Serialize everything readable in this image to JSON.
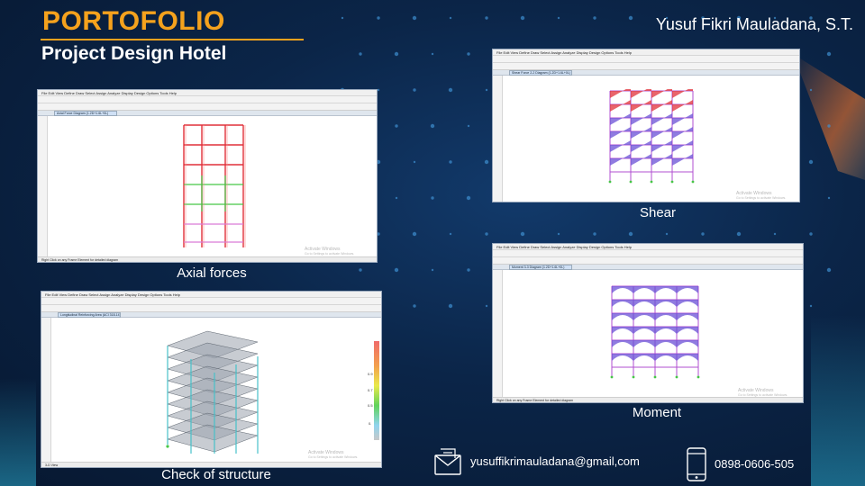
{
  "header": {
    "title": "PORTOFOLIO",
    "subtitle": "Project Design Hotel",
    "author": "Yusuf Fikri Mauladana, S.T."
  },
  "colors": {
    "accent": "#f5a21d",
    "background": "#0b2548"
  },
  "panels": {
    "axial": {
      "caption": "Axial forces",
      "tab": "Axial Force Diagram (1.2D+1.6L+0L)",
      "status": "Right Click on any Frame Element for detailed diagram"
    },
    "shear": {
      "caption": "Shear",
      "tab": "Shear Force 2-2 Diagram (1.2D+1.6L+0L)"
    },
    "moment": {
      "caption": "Moment",
      "tab": "Moment 3-3 Diagram (1.2D+1.6L+0L)",
      "status": "Right Click on any Frame Element for detailed diagram"
    },
    "check": {
      "caption": "Check of structure",
      "tab": "Longitudinal Reinforcing Area (ACI 318-14)",
      "status": "3-D View",
      "legend_ticks": [
        "0.",
        "0.5",
        "0.7",
        "0.9"
      ]
    }
  },
  "watermark": {
    "line1": "Activate Windows",
    "line2": "Go to Settings to activate Windows."
  },
  "menu": "File  Edit  View  Define  Draw  Select  Assign  Analyze  Display  Design  Options  Tools  Help",
  "statusbar_right": "GLOBAL    Kgf, m, C",
  "contact": {
    "email": "yusuffikrimauladana@gmail,com",
    "phone": "0898-0606-505",
    "email_icon": "envelope-icon",
    "phone_icon": "smartphone-icon"
  }
}
